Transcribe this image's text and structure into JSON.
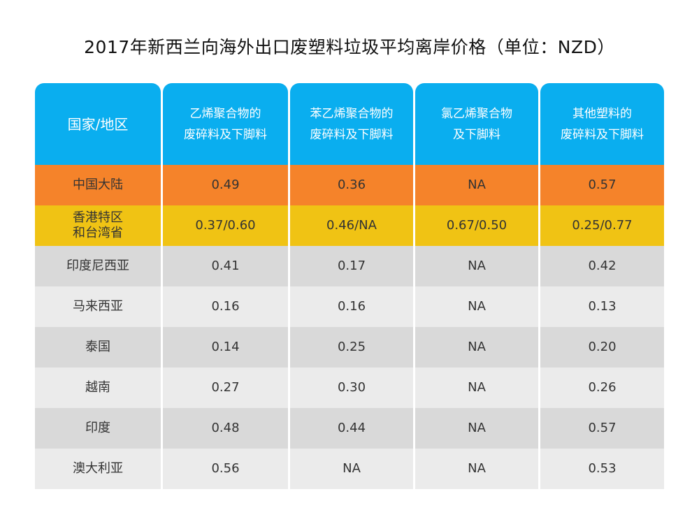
{
  "title": "2017年新西兰向海外出口废塑料垃圾平均离岸价格（单位：NZD）",
  "headers": [
    "国家/地区",
    "乙烯聚合物的\n废碎料及下脚料",
    "苯乙烯聚合物的\n废碎料及下脚料",
    "氯乙烯聚合物\n及下脚料",
    "其他塑料的\n废碎料及下脚料"
  ],
  "rows": [
    [
      "中国大陆",
      "0.49",
      "0.36",
      "NA",
      "0.57"
    ],
    [
      "香港特区\n和台湾省",
      "0.37/0.60",
      "0.46/NA",
      "0.67/0.50",
      "0.25/0.77"
    ],
    [
      "印度尼西亚",
      "0.41",
      "0.17",
      "NA",
      "0.42"
    ],
    [
      "马来西亚",
      "0.16",
      "0.16",
      "NA",
      "0.13"
    ],
    [
      "泰国",
      "0.14",
      "0.25",
      "NA",
      "0.20"
    ],
    [
      "越南",
      "0.27",
      "0.30",
      "NA",
      "0.26"
    ],
    [
      "印度",
      "0.48",
      "0.44",
      "NA",
      "0.57"
    ],
    [
      "澳大利亚",
      "0.56",
      "NA",
      "NA",
      "0.53"
    ]
  ],
  "colors": {
    "header": "#0aaeef",
    "china": "#f5832a",
    "hk_tw": "#f0c314",
    "gray_dark": "#d9d9d9",
    "gray_light": "#ebebeb"
  }
}
